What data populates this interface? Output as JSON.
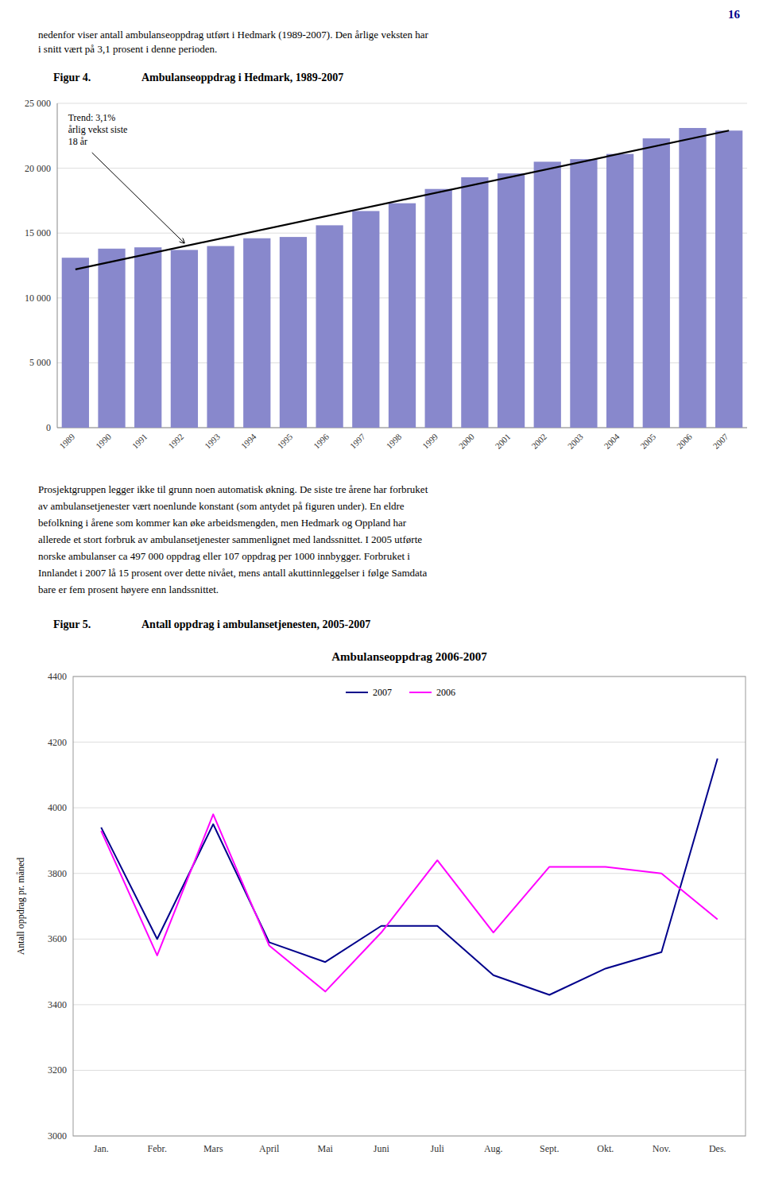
{
  "page_number": "16",
  "page_number_color": "#00008B",
  "intro_lines": [
    "nedenfor viser antall ambulanseoppdrag utført i Hedmark (1989-2007). Den årlige veksten har",
    "i snitt vært på 3,1 prosent i denne perioden."
  ],
  "body_lines": [
    "Prosjektgruppen legger ikke til grunn noen automatisk økning. De siste tre årene har forbruket",
    "av ambulansetjenester vært noenlunde konstant (som antydet på figuren under). En eldre",
    "befolkning i årene som kommer kan øke arbeidsmengden, men Hedmark og Oppland har",
    "allerede et stort forbruk av ambulansetjenester sammenlignet med landssnittet. I 2005 utførte",
    "norske ambulanser ca 497 000 oppdrag eller 107 oppdrag per 1000 innbygger. Forbruket i",
    "Innlandet i 2007 lå 15 prosent over dette nivået, mens antall akuttinnleggelser i følge Samdata",
    "bare er fem prosent høyere enn landssnittet."
  ],
  "chart_data": [
    {
      "type": "bar",
      "caption_label": "Figur 4.",
      "caption": "Ambulanseoppdrag i Hedmark, 1989-2007",
      "categories": [
        "1989",
        "1990",
        "1991",
        "1992",
        "1993",
        "1994",
        "1995",
        "1996",
        "1997",
        "1998",
        "1999",
        "2000",
        "2001",
        "2002",
        "2003",
        "2004",
        "2005",
        "2006",
        "2007"
      ],
      "values": [
        13100,
        13800,
        13900,
        13700,
        14000,
        14600,
        14700,
        15600,
        16700,
        17300,
        18400,
        19300,
        19600,
        20500,
        20700,
        21100,
        22300,
        23100,
        22900
      ],
      "color": "#8888cc",
      "trend": {
        "start": 12200,
        "end": 22900
      },
      "annotation": "Trend: 3,1%\nårlig vekst siste\n18 år",
      "ylim": [
        0,
        25000
      ],
      "yticks": [
        0,
        {
          "value": 5000,
          "label": "5 000"
        },
        {
          "value": 10000,
          "label": "10 000"
        },
        {
          "value": 15000,
          "label": "15 000"
        },
        {
          "value": 20000,
          "label": "20 000"
        },
        {
          "value": 25000,
          "label": "25 000"
        }
      ],
      "grid": true
    },
    {
      "type": "line",
      "caption_label": "Figur 5.",
      "caption": "Antall oppdrag i ambulansetjenesten, 2005-2007",
      "title": "Ambulanseoppdrag 2006-2007",
      "ylabel": "Antall oppdrag pr. måned",
      "categories": [
        "Jan.",
        "Febr.",
        "Mars",
        "April",
        "Mai",
        "Juni",
        "Juli",
        "Aug.",
        "Sept.",
        "Okt.",
        "Nov.",
        "Des."
      ],
      "series": [
        {
          "name": "2007",
          "color": "#00008B",
          "values": [
            3940,
            3600,
            3950,
            3590,
            3530,
            3640,
            3640,
            3490,
            3430,
            3510,
            3560,
            4150
          ]
        },
        {
          "name": "2006",
          "color": "#FF00FF",
          "values": [
            3930,
            3550,
            3980,
            3580,
            3440,
            3620,
            3840,
            3620,
            3820,
            3820,
            3800,
            3660
          ]
        }
      ],
      "ylim": [
        3000,
        4400
      ],
      "yticks": [
        3000,
        3200,
        3400,
        3600,
        3800,
        4000,
        4200,
        4400
      ],
      "grid": true,
      "legend": "top"
    }
  ]
}
